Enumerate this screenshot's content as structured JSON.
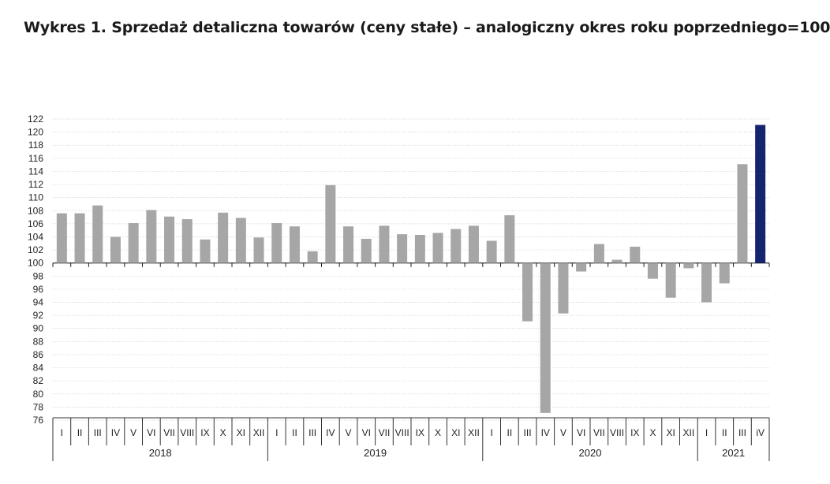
{
  "chart_data": {
    "type": "bar",
    "title": "Wykres 1. Sprzedaż detaliczna towarów (ceny stałe) – analogiczny okres roku poprzedniego=100",
    "baseline": 100,
    "ylim": [
      76,
      122
    ],
    "y_ticks": [
      76,
      78,
      80,
      82,
      84,
      86,
      88,
      90,
      92,
      94,
      96,
      98,
      100,
      102,
      104,
      106,
      108,
      110,
      112,
      114,
      116,
      118,
      120,
      122
    ],
    "categories": [
      "I",
      "II",
      "III",
      "IV",
      "V",
      "VI",
      "VII",
      "VIII",
      "IX",
      "X",
      "XI",
      "XII",
      "I",
      "II",
      "III",
      "IV",
      "V",
      "VI",
      "VII",
      "VIII",
      "IX",
      "X",
      "XI",
      "XII",
      "I",
      "II",
      "III",
      "IV",
      "V",
      "VI",
      "VII",
      "VIII",
      "IX",
      "X",
      "XI",
      "XII",
      "I",
      "II",
      "III",
      "iV"
    ],
    "years": [
      {
        "label": "2018",
        "count": 12
      },
      {
        "label": "2019",
        "count": 12
      },
      {
        "label": "2020",
        "count": 12
      },
      {
        "label": "2021",
        "count": 4
      }
    ],
    "values": [
      107.6,
      107.6,
      108.8,
      104.0,
      106.1,
      108.1,
      107.1,
      106.7,
      103.6,
      107.7,
      106.9,
      103.9,
      106.1,
      105.6,
      101.8,
      111.9,
      105.6,
      103.7,
      105.7,
      104.4,
      104.3,
      104.6,
      105.2,
      105.7,
      103.4,
      107.3,
      91.1,
      77.1,
      92.3,
      98.7,
      102.9,
      100.5,
      102.5,
      97.6,
      94.7,
      99.2,
      94.0,
      96.9,
      115.1,
      121.1
    ],
    "colors": {
      "default": "#a6a6a6",
      "highlight": "#14246e"
    },
    "highlight_index": 39
  }
}
